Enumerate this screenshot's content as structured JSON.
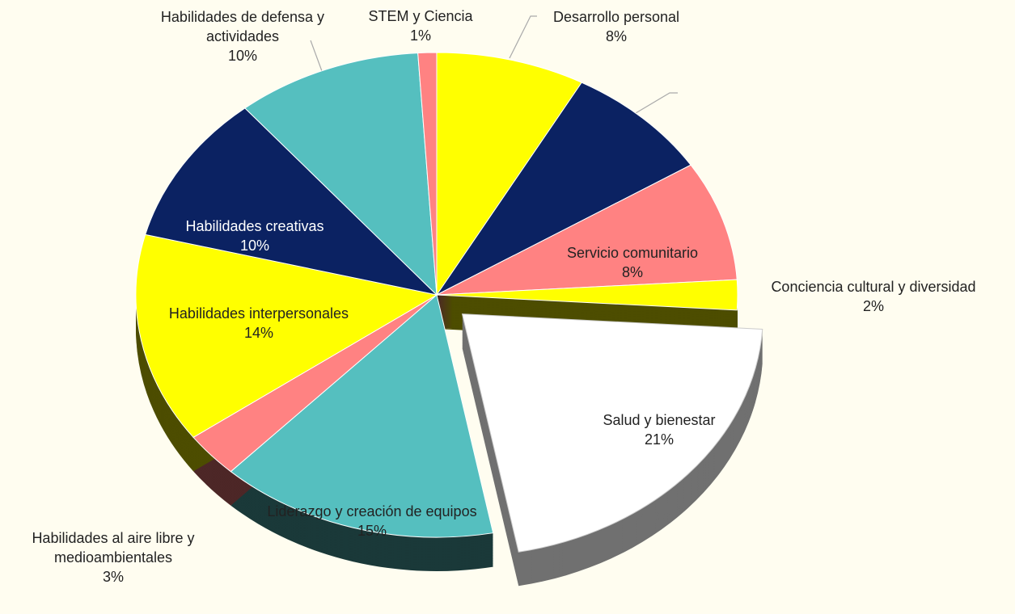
{
  "chart_data": {
    "type": "pie",
    "categories": [
      "Desarrollo personal",
      null,
      "Servicio comunitario",
      "Conciencia cultural y diversidad",
      "Salud y bienestar",
      "Liderazgo y creación de equipos",
      "Habilidades al aire libre y medioambientales",
      "Habilidades interpersonales",
      "Habilidades creativas",
      "Habilidades de defensa y actividades",
      "STEM y Ciencia"
    ],
    "values": [
      8,
      8,
      8,
      2,
      21,
      15,
      3,
      14,
      10,
      10,
      1
    ],
    "value_labels": [
      "8%",
      null,
      "8%",
      "2%",
      "21%",
      "15%",
      "3%",
      "14%",
      "10%",
      "10%",
      "1%"
    ],
    "colors": [
      "#ffff00",
      "#0b2262",
      "#ff8282",
      "#ffff00",
      "#ffffff",
      "#55bfbf",
      "#ff8282",
      "#ffff00",
      "#0b2262",
      "#55bfbf",
      "#ff8282"
    ],
    "exploded": [
      false,
      false,
      false,
      false,
      true,
      false,
      false,
      false,
      false,
      false,
      false
    ],
    "three_d": true
  }
}
